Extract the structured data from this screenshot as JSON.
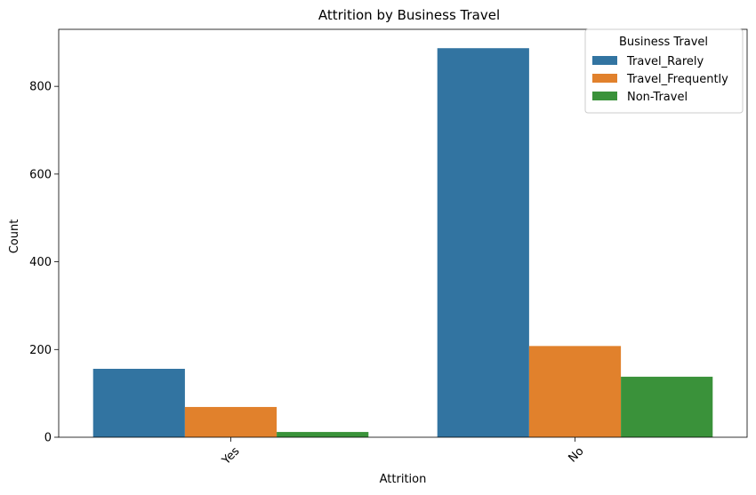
{
  "chart_data": {
    "type": "bar",
    "title": "Attrition by Business Travel",
    "xlabel": "Attrition",
    "ylabel": "Count",
    "categories": [
      "Yes",
      "No"
    ],
    "series": [
      {
        "name": "Travel_Rarely",
        "values": [
          156,
          887
        ],
        "color": "#3274a1"
      },
      {
        "name": "Travel_Frequently",
        "values": [
          69,
          208
        ],
        "color": "#e1812c"
      },
      {
        "name": "Non-Travel",
        "values": [
          12,
          138
        ],
        "color": "#3a923a"
      }
    ],
    "ylim": [
      0,
      930
    ],
    "yticks": [
      0,
      200,
      400,
      600,
      800
    ],
    "legend": {
      "title": "Business Travel",
      "position": "top-right"
    },
    "grid": false
  }
}
